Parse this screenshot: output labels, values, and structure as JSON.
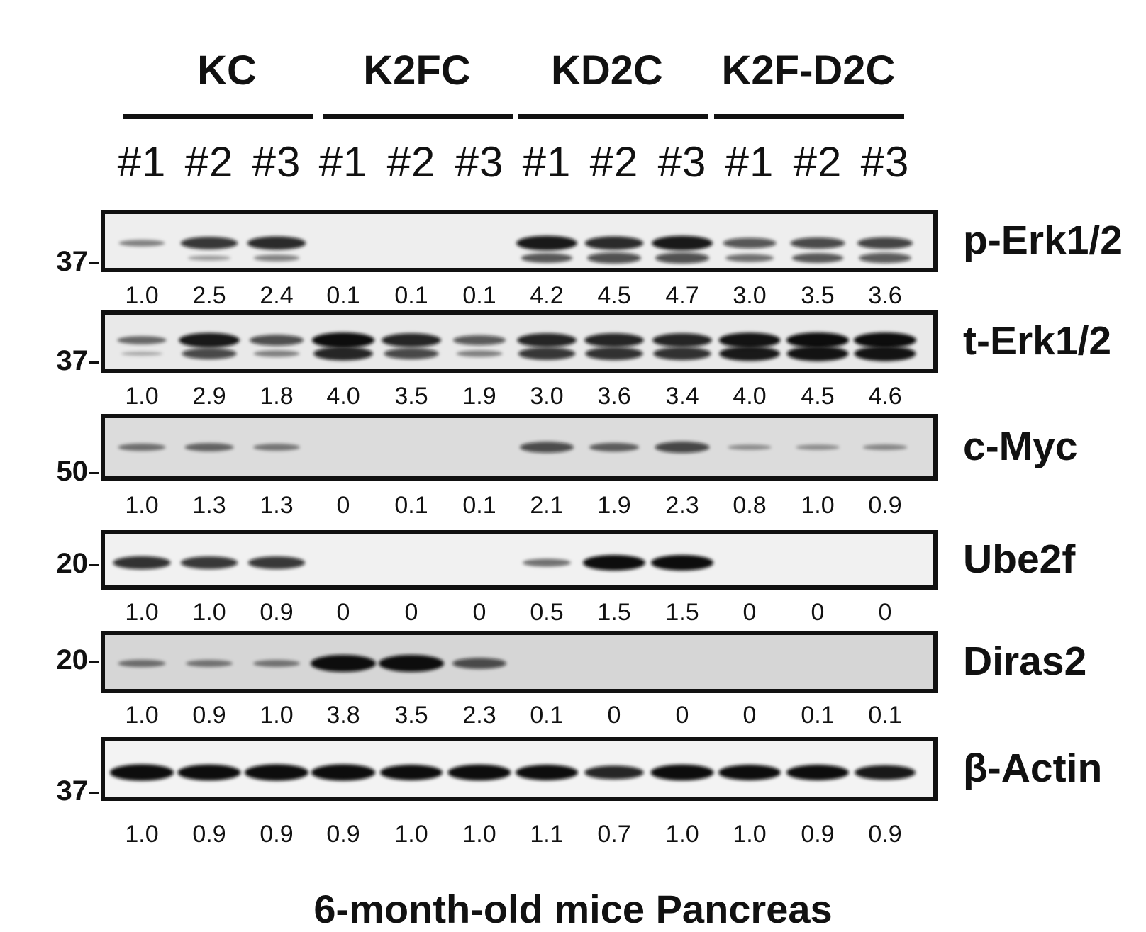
{
  "groups": [
    "KC",
    "K2FC",
    "KD2C",
    "K2F-D2C"
  ],
  "lanes": [
    "#1",
    "#2",
    "#3",
    "#1",
    "#2",
    "#3",
    "#1",
    "#2",
    "#3",
    "#1",
    "#2",
    "#3"
  ],
  "panels": [
    {
      "label": "p-Erk1/2",
      "marker": "37",
      "bg": "#eeeeee",
      "bands_upper": [
        0.9,
        2.3,
        2.5,
        0,
        0,
        0,
        2.8,
        2.5,
        2.8,
        1.8,
        2.0,
        2.1
      ],
      "bands_lower": [
        0,
        0.5,
        0.9,
        0,
        0,
        0,
        1.6,
        1.9,
        1.9,
        1.2,
        1.6,
        1.7
      ],
      "quant": [
        "1.0",
        "2.5",
        "2.4",
        "0.1",
        "0.1",
        "0.1",
        "4.2",
        "4.5",
        "4.7",
        "3.0",
        "3.5",
        "3.6"
      ]
    },
    {
      "label": "t-Erk1/2",
      "marker": "37",
      "bg": "#e9e9e9",
      "bands_upper": [
        1.3,
        2.8,
        1.9,
        3.0,
        2.6,
        1.7,
        2.6,
        2.6,
        2.6,
        2.9,
        3.0,
        3.0
      ],
      "bands_lower": [
        0.3,
        2.0,
        0.9,
        2.6,
        2.0,
        0.9,
        2.3,
        2.4,
        2.4,
        2.8,
        2.9,
        2.9
      ],
      "quant": [
        "1.0",
        "2.9",
        "1.8",
        "4.0",
        "3.5",
        "1.9",
        "3.0",
        "3.6",
        "3.4",
        "4.0",
        "4.5",
        "4.6"
      ]
    },
    {
      "label": "c-Myc",
      "marker": "50",
      "bg": "#dcdcdc",
      "bands_upper": [
        1.1,
        1.3,
        1.0,
        0,
        0,
        0,
        1.9,
        1.4,
        2.0,
        0.6,
        0.6,
        0.7
      ],
      "bands_lower": [],
      "quant": [
        "1.0",
        "1.3",
        "1.3",
        "0",
        "0.1",
        "0.1",
        "2.1",
        "1.9",
        "2.3",
        "0.8",
        "1.0",
        "0.9"
      ]
    },
    {
      "label": "Ube2f",
      "marker": "20",
      "bg": "#f1f1f1",
      "bands_upper": [
        2.4,
        2.3,
        2.3,
        0,
        0,
        0,
        1.2,
        3.0,
        3.0,
        0,
        0,
        0
      ],
      "bands_lower": [],
      "quant": [
        "1.0",
        "1.0",
        "0.9",
        "0",
        "0",
        "0",
        "0.5",
        "1.5",
        "1.5",
        "0",
        "0",
        "0"
      ]
    },
    {
      "label": "Diras2",
      "marker": "20",
      "bg": "#d6d6d6",
      "bands_upper": [
        1.1,
        1.0,
        1.0,
        3.4,
        3.4,
        1.9,
        0,
        0,
        0,
        0,
        0,
        0
      ],
      "bands_lower": [],
      "quant": [
        "1.0",
        "0.9",
        "1.0",
        "3.8",
        "3.5",
        "2.3",
        "0.1",
        "0",
        "0",
        "0",
        "0.1",
        "0.1"
      ]
    },
    {
      "label": "β-Actin",
      "marker": "37",
      "bg": "#f3f3f3",
      "bands_upper": [
        3.2,
        3.1,
        3.2,
        3.2,
        3.0,
        3.1,
        3.0,
        2.6,
        3.1,
        3.0,
        3.0,
        2.8
      ],
      "bands_lower": [],
      "quant": [
        "1.0",
        "0.9",
        "0.9",
        "0.9",
        "1.0",
        "1.0",
        "1.1",
        "0.7",
        "1.0",
        "1.0",
        "0.9",
        "0.9"
      ]
    }
  ],
  "footer": "6-month-old mice Pancreas"
}
